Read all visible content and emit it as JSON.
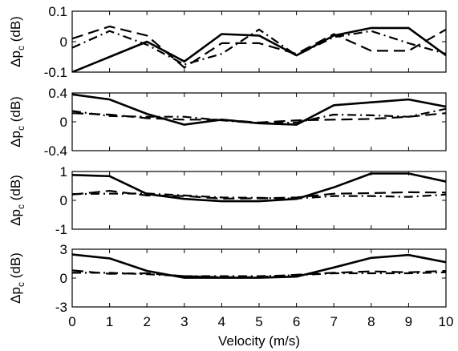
{
  "chart_data": {
    "type": "line",
    "xlabel": "Velocity (m/s)",
    "x": [
      0,
      1,
      2,
      3,
      4,
      5,
      6,
      7,
      8,
      9,
      10
    ],
    "xticks": [
      "0",
      "1",
      "2",
      "3",
      "4",
      "5",
      "6",
      "7",
      "8",
      "9",
      "10"
    ],
    "xlim": [
      0,
      10
    ],
    "line_styles": [
      "solid",
      "dashed",
      "dash-dot"
    ],
    "line_color": "#000000",
    "panels": [
      {
        "ylabel_main": "Δp",
        "ylabel_sub": "c",
        "ylabel_unit": " (dB)",
        "ylim": [
          -0.1,
          0.1
        ],
        "yticks": [
          {
            "value": 0.1,
            "label": "0.1"
          },
          {
            "value": 0,
            "label": "0"
          },
          {
            "value": -0.1,
            "label": "-0.1"
          }
        ],
        "series": [
          {
            "values": [
              -0.1,
              -0.05,
              0.0,
              -0.065,
              0.025,
              0.02,
              -0.045,
              0.02,
              0.045,
              0.045,
              -0.045
            ]
          },
          {
            "values": [
              0.01,
              0.05,
              0.02,
              -0.085,
              -0.005,
              -0.005,
              -0.04,
              0.025,
              -0.03,
              -0.03,
              0.04
            ]
          },
          {
            "values": [
              -0.02,
              0.035,
              -0.01,
              -0.075,
              -0.04,
              0.04,
              -0.045,
              0.015,
              0.035,
              -0.005,
              -0.04
            ]
          }
        ]
      },
      {
        "ylabel_main": "Δp",
        "ylabel_sub": "c",
        "ylabel_unit": " (dB)",
        "ylim": [
          -0.4,
          0.4
        ],
        "yticks": [
          {
            "value": 0.4,
            "label": "0.4"
          },
          {
            "value": 0,
            "label": "0"
          },
          {
            "value": -0.4,
            "label": "-0.4"
          }
        ],
        "series": [
          {
            "values": [
              0.38,
              0.31,
              0.11,
              -0.04,
              0.03,
              -0.02,
              -0.04,
              0.23,
              0.27,
              0.31,
              0.21
            ]
          },
          {
            "values": [
              0.12,
              0.1,
              0.05,
              0.03,
              0.03,
              -0.01,
              0.02,
              0.03,
              0.04,
              0.07,
              0.12
            ]
          },
          {
            "values": [
              0.15,
              0.08,
              0.07,
              0.07,
              0.02,
              -0.02,
              -0.01,
              0.1,
              0.09,
              0.07,
              0.18
            ]
          }
        ]
      },
      {
        "ylabel_main": "Δp",
        "ylabel_sub": "c",
        "ylabel_unit": " (dB)",
        "ylim": [
          -1,
          1
        ],
        "yticks": [
          {
            "value": 1,
            "label": "1"
          },
          {
            "value": 0,
            "label": "0"
          },
          {
            "value": -1,
            "label": "-1"
          }
        ],
        "series": [
          {
            "values": [
              0.88,
              0.84,
              0.22,
              0.05,
              -0.03,
              -0.03,
              0.05,
              0.45,
              0.93,
              0.93,
              0.65
            ]
          },
          {
            "values": [
              0.2,
              0.33,
              0.17,
              0.15,
              0.06,
              0.07,
              0.1,
              0.23,
              0.25,
              0.28,
              0.27
            ]
          },
          {
            "values": [
              0.22,
              0.23,
              0.24,
              0.17,
              0.1,
              0.09,
              0.06,
              0.15,
              0.15,
              0.12,
              0.2
            ]
          }
        ]
      },
      {
        "ylabel_main": "Δp",
        "ylabel_sub": "c",
        "ylabel_unit": " (dB)",
        "ylim": [
          -3,
          3
        ],
        "yticks": [
          {
            "value": 3,
            "label": "3"
          },
          {
            "value": 0,
            "label": "0"
          },
          {
            "value": -3,
            "label": "-3"
          }
        ],
        "series": [
          {
            "values": [
              2.45,
              2.05,
              0.75,
              0.03,
              0.03,
              0.03,
              0.15,
              1.1,
              2.1,
              2.4,
              1.65
            ]
          },
          {
            "values": [
              0.8,
              0.45,
              0.5,
              0.2,
              0.1,
              0.1,
              0.35,
              0.55,
              0.7,
              0.6,
              0.75
            ]
          },
          {
            "values": [
              0.55,
              0.55,
              0.4,
              0.2,
              0.2,
              0.2,
              0.3,
              0.5,
              0.5,
              0.5,
              0.6
            ]
          }
        ]
      }
    ]
  }
}
